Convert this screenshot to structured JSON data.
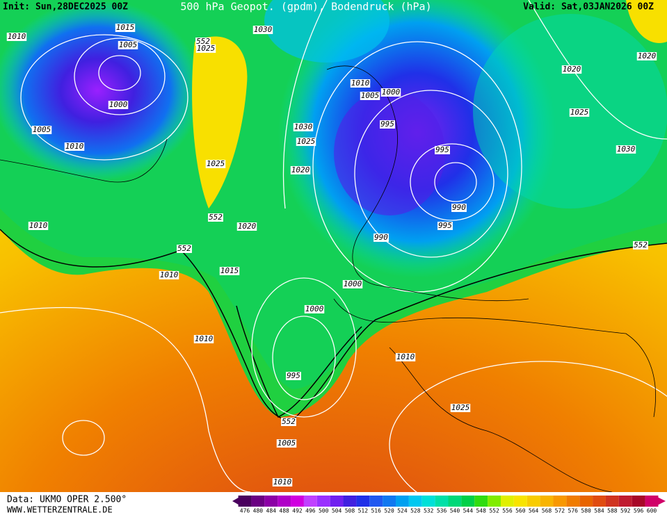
{
  "header": {
    "init": "Init: Sun,28DEC2025 00Z",
    "title": "500 hPa Geopot. (gpdm), Bodendruck (hPa)",
    "valid": "Valid: Sat,03JAN2026 00Z"
  },
  "map": {
    "isobar_labels": [
      "1015",
      "1005",
      "1000",
      "1005",
      "1010",
      "1010",
      "1010",
      "552",
      "1025",
      "1030",
      "1030",
      "1025",
      "1020",
      "1025",
      "552",
      "1020",
      "552",
      "1010",
      "1015",
      "1010",
      "1005",
      "1000",
      "995",
      "995",
      "990",
      "995",
      "990",
      "1000",
      "1000",
      "1010",
      "995",
      "1010",
      "552",
      "1005",
      "1025",
      "1010",
      "1020",
      "1020",
      "1025",
      "1030",
      "552"
    ]
  },
  "colorbar": {
    "values": [
      476,
      480,
      484,
      488,
      492,
      496,
      500,
      504,
      508,
      512,
      516,
      520,
      524,
      528,
      532,
      536,
      540,
      544,
      548,
      552,
      556,
      560,
      564,
      568,
      572,
      576,
      580,
      584,
      588,
      592,
      596,
      600
    ],
    "colors": [
      "#4a005e",
      "#6a0082",
      "#8c00a6",
      "#b000c8",
      "#d000e0",
      "#c040ff",
      "#9a30ff",
      "#7020f0",
      "#4020e0",
      "#2030e8",
      "#2058f0",
      "#1078f0",
      "#00a0f0",
      "#00c8f0",
      "#00e0d8",
      "#00e0a8",
      "#00d878",
      "#00d048",
      "#30dc10",
      "#80ec00",
      "#e0f000",
      "#f8e400",
      "#f8cc00",
      "#f8b400",
      "#f89800",
      "#f07c00",
      "#e86400",
      "#e04c10",
      "#d03420",
      "#c01c30",
      "#a80828",
      "#d00068"
    ]
  },
  "footer": {
    "source": "Data: UKMO OPER 2.500°",
    "site": "WWW.WETTERZENTRALE.DE"
  }
}
